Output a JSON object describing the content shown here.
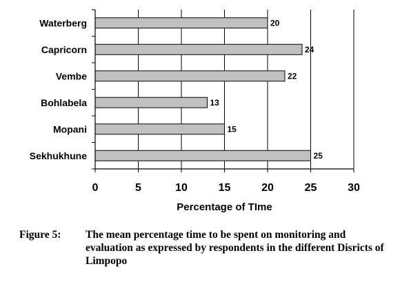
{
  "chart_data": {
    "type": "bar",
    "orientation": "horizontal",
    "categories": [
      "Waterberg",
      "Capricorn",
      "Vembe",
      "Bohlabela",
      "Mopani",
      "Sekhukhune"
    ],
    "values": [
      20,
      24,
      22,
      13,
      15,
      25
    ],
    "title": "",
    "xlabel": "Percentage of TIme",
    "ylabel": "",
    "xlim": [
      0,
      30
    ],
    "x_ticks": [
      0,
      5,
      10,
      15,
      20,
      25,
      30
    ],
    "grid": "vertical major gridlines",
    "bar_color": "#c0c0c0",
    "bar_edge_color": "#000000"
  },
  "caption": {
    "label": "Figure 5:",
    "text": "The mean percentage time to be spent on monitoring  and evaluation as expressed by respondents in the  different Disricts of Limpopo"
  }
}
